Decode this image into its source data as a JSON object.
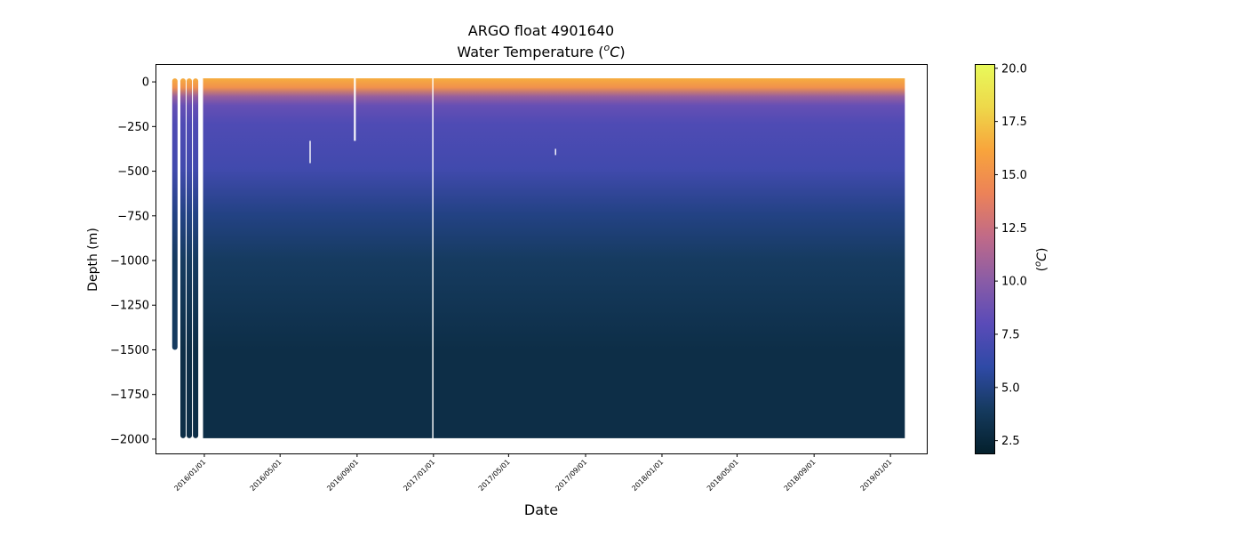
{
  "chart_data": {
    "type": "heatmap",
    "title_line1": "ARGO float 4901640",
    "title_line2_prefix": "Water Temperature (",
    "title_line2_unit_sup": "o",
    "title_line2_unit": "C",
    "title_line2_suffix": ")",
    "xlabel": "Date",
    "ylabel": "Depth (m)",
    "colorbar_label": "(°C)",
    "colorbar_label_sup": "o",
    "colorbar_label_unit": "C",
    "x_range": [
      "2015-10-15",
      "2019-02-28"
    ],
    "x_data_extent": [
      "2015-11-15",
      "2019-01-24"
    ],
    "ylim": [
      -2080,
      100
    ],
    "x_ticks": [
      "2016/01/01",
      "2016/05/01",
      "2016/09/01",
      "2017/01/01",
      "2017/05/01",
      "2017/09/01",
      "2018/01/01",
      "2018/05/01",
      "2018/09/01",
      "2019/01/01"
    ],
    "y_ticks": [
      0,
      -250,
      -500,
      -750,
      -1000,
      -1250,
      -1500,
      -1750,
      -2000
    ],
    "y_tick_labels": [
      "0",
      "−250",
      "−500",
      "−750",
      "−1000",
      "−1250",
      "−1500",
      "−1750",
      "−2000"
    ],
    "colorbar": {
      "colormap": "thermal",
      "min": 1.9,
      "max": 20.2,
      "ticks": [
        2.5,
        5.0,
        7.5,
        10.0,
        12.5,
        15.0,
        17.5,
        20.0
      ],
      "tick_labels": [
        "2.5",
        "5.0",
        "7.5",
        "10.0",
        "12.5",
        "15.0",
        "17.5",
        "20.0"
      ],
      "colors": [
        "#04202c",
        "#153a5e",
        "#2f4aa6",
        "#5a4bb8",
        "#8a5ca6",
        "#c06a88",
        "#ec8258",
        "#f8a43c",
        "#eed84a",
        "#e8fa5b"
      ]
    },
    "temperature_profile": {
      "depths": [
        0,
        -50,
        -100,
        -150,
        -250,
        -500,
        -750,
        -1000,
        -1500,
        -2000
      ],
      "typical_temperature": [
        16.5,
        15.0,
        10.5,
        8.5,
        7.5,
        6.8,
        5.0,
        4.0,
        3.0,
        2.3
      ]
    },
    "profiles_early": [
      {
        "date": "2015-11-15",
        "max_depth": -1490
      },
      {
        "date": "2015-11-28",
        "max_depth": -1985
      },
      {
        "date": "2015-12-08",
        "max_depth": -1985
      },
      {
        "date": "2015-12-18",
        "max_depth": -1985
      }
    ],
    "continuous_period": {
      "start": "2015-12-30",
      "end": "2019-01-24",
      "max_depth": -1985
    },
    "gaps": [
      {
        "start": "2016-08-27",
        "end": "2016-08-30",
        "from_depth": 0,
        "to_depth": -330
      },
      {
        "start": "2016-12-30",
        "end": "2017-01-01",
        "from_depth": 0,
        "to_depth": -1990
      },
      {
        "start": "2016-06-17",
        "end": "2016-06-19",
        "from_depth": -330,
        "to_depth": -455
      },
      {
        "start": "2017-07-14",
        "end": "2017-07-16",
        "from_depth": -375,
        "to_depth": -410
      }
    ]
  }
}
